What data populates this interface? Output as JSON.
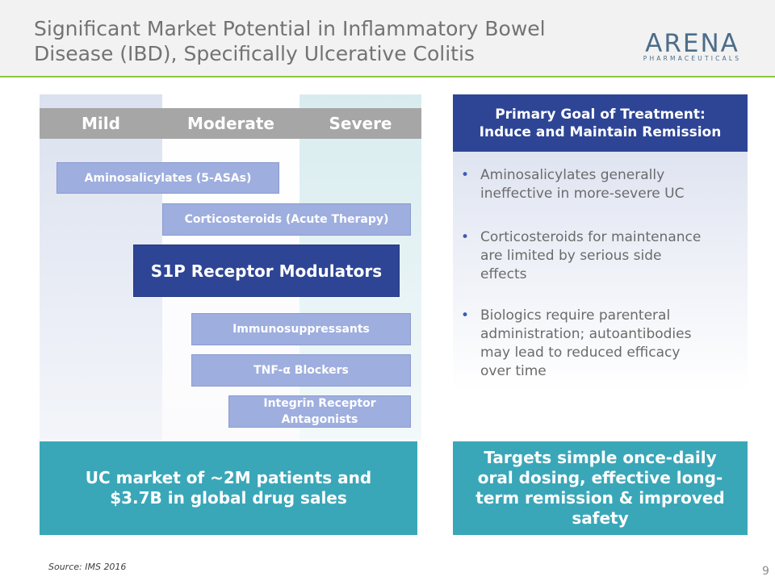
{
  "header": {
    "title_line1": "Significant Market Potential in Inflammatory Bowel",
    "title_line2": "Disease (IBD), Specifically Ulcerative Colitis",
    "logo_word": "ARENA",
    "logo_sub": "PHARMACEUTICALS",
    "accent_color": "#8cc63f"
  },
  "severity": {
    "mild": "Mild",
    "moderate": "Moderate",
    "severe": "Severe"
  },
  "therapies": {
    "aminosalicylates": "Aminosalicylates (5-ASAs)",
    "corticosteroids": "Corticosteroids (Acute Therapy)",
    "s1p": "S1P Receptor Modulators",
    "immunosuppressants": "Immunosuppressants",
    "tnf": "TNF-α Blockers",
    "integrin": "Integrin Receptor\nAntagonists"
  },
  "market_box": "UC market of ~2M patients and $3.7B in global drug sales",
  "goal": {
    "line1": "Primary Goal of Treatment:",
    "line2": "Induce and Maintain Remission",
    "bullets": [
      "Aminosalicylates generally\nineffective in more-severe UC",
      "Corticosteroids for maintenance\nare limited by serious side\neffects",
      "Biologics require parenteral\nadministration; autoantibodies\nmay lead to reduced efficacy\nover time"
    ]
  },
  "targets_box": "Targets simple once-daily oral dosing, effective long-term remission & improved safety",
  "footer": {
    "source": "Source: IMS 2016",
    "page_number": "9"
  },
  "colors": {
    "navy": "#2e4596",
    "light_blue": "#9eaede",
    "teal": "#3aa7b8",
    "gray_bar": "#a6a6a6"
  }
}
